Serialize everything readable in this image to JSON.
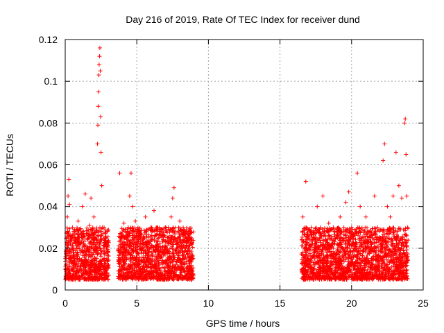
{
  "chart_data": {
    "type": "scatter",
    "title": "Day 216 of 2019, Rate Of TEC Index for receiver dund",
    "xlabel": "GPS time / hours",
    "ylabel": "ROTI / TECUs",
    "xlim": [
      0,
      25
    ],
    "ylim": [
      0,
      0.12
    ],
    "xticks": [
      0,
      5,
      10,
      15,
      20,
      25
    ],
    "xtick_labels": [
      "0",
      "5",
      "10",
      "15",
      "20",
      "25"
    ],
    "yticks": [
      0,
      0.02,
      0.04,
      0.06,
      0.08,
      0.1,
      0.12
    ],
    "ytick_labels": [
      "0",
      "0.02",
      "0.04",
      "0.06",
      "0.08",
      "0.1",
      "0.12"
    ],
    "grid": true,
    "marker": "+",
    "series": [
      {
        "name": "ROTI",
        "color": "#ff0000",
        "points": [
          [
            0.05,
            0.012
          ],
          [
            0.1,
            0.025
          ],
          [
            0.15,
            0.035
          ],
          [
            0.2,
            0.045
          ],
          [
            0.25,
            0.053
          ],
          [
            0.3,
            0.041
          ],
          [
            0.35,
            0.022
          ],
          [
            0.4,
            0.015
          ],
          [
            0.5,
            0.03
          ],
          [
            0.55,
            0.018
          ],
          [
            0.6,
            0.028
          ],
          [
            0.7,
            0.012
          ],
          [
            0.8,
            0.02
          ],
          [
            0.9,
            0.033
          ],
          [
            1.0,
            0.015
          ],
          [
            1.1,
            0.022
          ],
          [
            1.2,
            0.04
          ],
          [
            1.3,
            0.018
          ],
          [
            1.4,
            0.046
          ],
          [
            1.5,
            0.027
          ],
          [
            1.6,
            0.019
          ],
          [
            1.7,
            0.031
          ],
          [
            1.8,
            0.044
          ],
          [
            1.9,
            0.025
          ],
          [
            2.0,
            0.035
          ],
          [
            2.1,
            0.015
          ],
          [
            2.2,
            0.02
          ],
          [
            2.25,
            0.07
          ],
          [
            2.28,
            0.079
          ],
          [
            2.3,
            0.088
          ],
          [
            2.32,
            0.095
          ],
          [
            2.35,
            0.103
          ],
          [
            2.37,
            0.108
          ],
          [
            2.4,
            0.112
          ],
          [
            2.42,
            0.116
          ],
          [
            2.45,
            0.105
          ],
          [
            2.47,
            0.083
          ],
          [
            2.5,
            0.066
          ],
          [
            2.55,
            0.05
          ],
          [
            2.6,
            0.03
          ],
          [
            2.7,
            0.02
          ],
          [
            2.8,
            0.025
          ],
          [
            2.9,
            0.015
          ],
          [
            3.0,
            0.018
          ],
          [
            3.8,
            0.056
          ],
          [
            3.9,
            0.025
          ],
          [
            4.0,
            0.018
          ],
          [
            4.1,
            0.032
          ],
          [
            4.2,
            0.022
          ],
          [
            4.3,
            0.015
          ],
          [
            4.4,
            0.03
          ],
          [
            4.5,
            0.045
          ],
          [
            4.6,
            0.056
          ],
          [
            4.7,
            0.04
          ],
          [
            4.8,
            0.022
          ],
          [
            4.9,
            0.033
          ],
          [
            5.0,
            0.018
          ],
          [
            5.2,
            0.028
          ],
          [
            5.4,
            0.02
          ],
          [
            5.6,
            0.035
          ],
          [
            5.8,
            0.015
          ],
          [
            6.0,
            0.03
          ],
          [
            6.2,
            0.038
          ],
          [
            6.4,
            0.022
          ],
          [
            6.6,
            0.028
          ],
          [
            6.8,
            0.018
          ],
          [
            7.0,
            0.03
          ],
          [
            7.2,
            0.025
          ],
          [
            7.4,
            0.035
          ],
          [
            7.5,
            0.044
          ],
          [
            7.6,
            0.049
          ],
          [
            7.8,
            0.022
          ],
          [
            8.0,
            0.033
          ],
          [
            8.2,
            0.018
          ],
          [
            8.4,
            0.028
          ],
          [
            8.6,
            0.02
          ],
          [
            8.8,
            0.025
          ],
          [
            16.6,
            0.035
          ],
          [
            16.8,
            0.052
          ],
          [
            17.0,
            0.02
          ],
          [
            17.2,
            0.03
          ],
          [
            17.4,
            0.018
          ],
          [
            17.6,
            0.04
          ],
          [
            17.8,
            0.025
          ],
          [
            18.0,
            0.045
          ],
          [
            18.2,
            0.02
          ],
          [
            18.4,
            0.032
          ],
          [
            18.6,
            0.015
          ],
          [
            18.8,
            0.028
          ],
          [
            19.0,
            0.022
          ],
          [
            19.2,
            0.035
          ],
          [
            19.4,
            0.018
          ],
          [
            19.6,
            0.042
          ],
          [
            19.8,
            0.047
          ],
          [
            20.0,
            0.03
          ],
          [
            20.2,
            0.022
          ],
          [
            20.4,
            0.056
          ],
          [
            20.6,
            0.04
          ],
          [
            20.8,
            0.025
          ],
          [
            21.0,
            0.035
          ],
          [
            21.2,
            0.028
          ],
          [
            21.4,
            0.02
          ],
          [
            21.6,
            0.045
          ],
          [
            21.8,
            0.03
          ],
          [
            22.0,
            0.025
          ],
          [
            22.2,
            0.062
          ],
          [
            22.3,
            0.07
          ],
          [
            22.5,
            0.04
          ],
          [
            22.7,
            0.035
          ],
          [
            22.9,
            0.045
          ],
          [
            23.1,
            0.066
          ],
          [
            23.3,
            0.05
          ],
          [
            23.5,
            0.044
          ],
          [
            23.7,
            0.08
          ],
          [
            23.75,
            0.082
          ],
          [
            23.8,
            0.065
          ],
          [
            23.85,
            0.045
          ],
          [
            23.9,
            0.03
          ]
        ]
      }
    ],
    "dense_bands": [
      {
        "x_start": 0.0,
        "x_end": 3.05,
        "y_low": 0.005,
        "y_high": 0.03
      },
      {
        "x_start": 3.7,
        "x_end": 8.95,
        "y_low": 0.005,
        "y_high": 0.03
      },
      {
        "x_start": 16.5,
        "x_end": 23.95,
        "y_low": 0.005,
        "y_high": 0.03
      }
    ]
  }
}
